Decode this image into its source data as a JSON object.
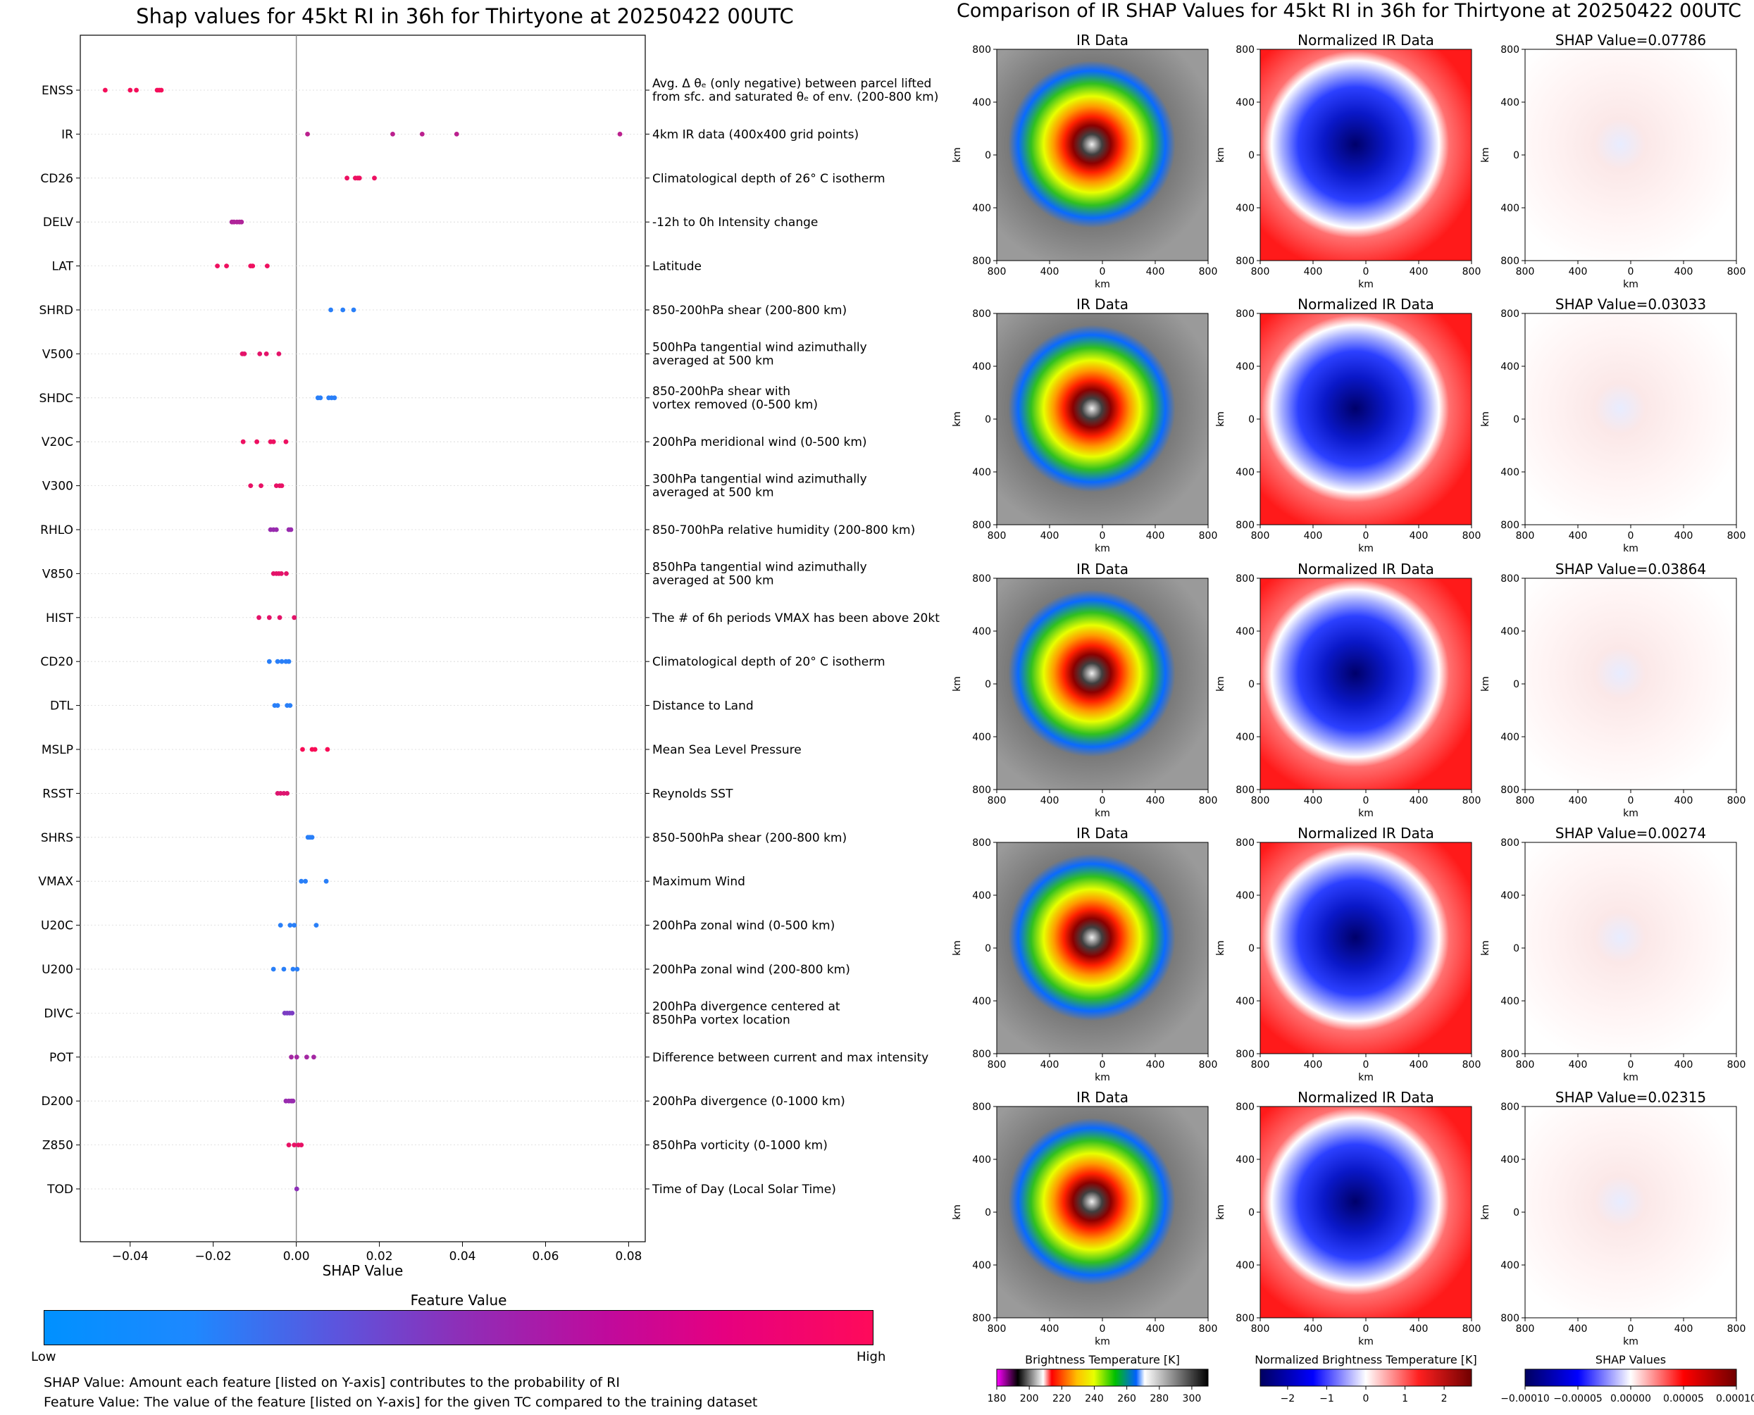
{
  "left": {
    "title": "Shap values for 45kt RI in 36h for Thirtyone at 20250422 00UTC",
    "xlabel": "SHAP Value",
    "colorbar": {
      "title": "Feature Value",
      "low": "Low",
      "high": "High"
    },
    "notes": [
      "SHAP Value: Amount each feature [listed on Y-axis] contributes to the probability of RI",
      "Feature Value: The value of the feature [listed on Y-axis] for the given TC compared to the training dataset"
    ]
  },
  "right": {
    "title": "Comparison of IR SHAP Values for 45kt RI in 36h for Thirtyone at 20250422 00UTC",
    "panel_titles": {
      "ir": "IR Data",
      "norm": "Normalized IR Data"
    },
    "shap_titles": [
      "SHAP Value=0.07786",
      "SHAP Value=0.03033",
      "SHAP Value=0.03864",
      "SHAP Value=0.00274",
      "SHAP Value=0.02315"
    ],
    "axis_label": "km",
    "tick_labels": [
      "800",
      "400",
      "0",
      "400",
      "800"
    ],
    "colorbars": [
      {
        "label": "Brightness Temperature [K]",
        "ticks": [
          "180",
          "200",
          "220",
          "240",
          "260",
          "280",
          "300"
        ]
      },
      {
        "label": "Normalized Brightness Temperature [K]",
        "ticks": [
          "−2",
          "−1",
          "0",
          "1",
          "2"
        ]
      },
      {
        "label": "SHAP Values",
        "ticks": [
          "−0.00010",
          "−0.00005",
          "0.00000",
          "0.00005",
          "0.00010"
        ]
      }
    ]
  },
  "chart_data": [
    {
      "type": "scatter",
      "title": "Shap values for 45kt RI in 36h for Thirtyone at 20250422 00UTC",
      "xlabel": "SHAP Value",
      "xlim": [
        -0.052,
        0.084
      ],
      "xticks": [
        "−0.04",
        "−0.02",
        "0.00",
        "0.02",
        "0.04",
        "0.06",
        "0.08"
      ],
      "xtick_values": [
        -0.04,
        -0.02,
        0.0,
        0.02,
        0.04,
        0.06,
        0.08
      ],
      "colormap": {
        "low": "#1e88ff",
        "high": "#ff0a50"
      },
      "features": [
        {
          "name": "ENSS",
          "desc": [
            "Avg. Δ θₑ (only negative) between parcel lifted",
            "from sfc. and saturated θₑ of env. (200-800 km)"
          ],
          "values": [
            -0.046,
            -0.04,
            -0.0385,
            -0.0335,
            -0.033,
            -0.0325
          ],
          "fv": 0.95
        },
        {
          "name": "IR",
          "desc": [
            "4km IR data (400x400 grid points)"
          ],
          "values": [
            0.0027,
            0.0232,
            0.0303,
            0.0386,
            0.0779
          ],
          "fv": 0.7
        },
        {
          "name": "CD26",
          "desc": [
            "Climatological depth of 26° C isotherm"
          ],
          "values": [
            0.0122,
            0.0142,
            0.0148,
            0.0152,
            0.0188
          ],
          "fv": 0.92
        },
        {
          "name": "DELV",
          "desc": [
            "-12h to 0h Intensity change"
          ],
          "values": [
            -0.0155,
            -0.015,
            -0.0143,
            -0.0137,
            -0.0132
          ],
          "fv": 0.65
        },
        {
          "name": "LAT",
          "desc": [
            "Latitude"
          ],
          "values": [
            -0.019,
            -0.0168,
            -0.011,
            -0.0105,
            -0.007
          ],
          "fv": 0.93
        },
        {
          "name": "SHRD",
          "desc": [
            "850-200hPa shear (200-800 km)"
          ],
          "values": [
            0.0083,
            0.0112,
            0.0138
          ],
          "fv": 0.05
        },
        {
          "name": "V500",
          "desc": [
            "500hPa tangential wind azimuthally",
            "averaged at 500 km"
          ],
          "values": [
            -0.013,
            -0.0125,
            -0.0088,
            -0.0072,
            -0.0042
          ],
          "fv": 0.88
        },
        {
          "name": "SHDC",
          "desc": [
            "850-200hPa shear with",
            "vortex removed (0-500 km)"
          ],
          "values": [
            0.0052,
            0.0058,
            0.0078,
            0.0085,
            0.0092
          ],
          "fv": 0.05
        },
        {
          "name": "V20C",
          "desc": [
            "200hPa meridional wind (0-500 km)"
          ],
          "values": [
            -0.0128,
            -0.0095,
            -0.0062,
            -0.0055,
            -0.0025
          ],
          "fv": 0.92
        },
        {
          "name": "V300",
          "desc": [
            "300hPa tangential wind azimuthally",
            "averaged at 500 km"
          ],
          "values": [
            -0.011,
            -0.0085,
            -0.0048,
            -0.004,
            -0.0035
          ],
          "fv": 0.9
        },
        {
          "name": "RHLO",
          "desc": [
            "850-700hPa relative humidity (200-800 km)"
          ],
          "values": [
            -0.0062,
            -0.0055,
            -0.0048,
            -0.0018,
            -0.0013
          ],
          "fv": 0.55
        },
        {
          "name": "V850",
          "desc": [
            "850hPa tangential wind azimuthally",
            "averaged at 500 km"
          ],
          "values": [
            -0.0055,
            -0.0048,
            -0.0042,
            -0.0036,
            -0.0024
          ],
          "fv": 0.88
        },
        {
          "name": "HIST",
          "desc": [
            "The # of 6h periods VMAX has been above 20kt"
          ],
          "values": [
            -0.009,
            -0.0065,
            -0.004,
            -0.0005
          ],
          "fv": 0.88
        },
        {
          "name": "CD20",
          "desc": [
            "Climatological depth of 20° C isotherm"
          ],
          "values": [
            -0.0065,
            -0.0045,
            -0.0035,
            -0.0025,
            -0.0018
          ],
          "fv": 0.05
        },
        {
          "name": "DTL",
          "desc": [
            "Distance to Land"
          ],
          "values": [
            -0.0052,
            -0.0045,
            -0.0022,
            -0.0015
          ],
          "fv": 0.05
        },
        {
          "name": "MSLP",
          "desc": [
            "Mean Sea Level Pressure"
          ],
          "values": [
            0.0015,
            0.0038,
            0.0045,
            0.0075
          ],
          "fv": 0.97
        },
        {
          "name": "RSST",
          "desc": [
            "Reynolds SST"
          ],
          "values": [
            -0.0045,
            -0.0038,
            -0.003,
            -0.0022
          ],
          "fv": 0.85
        },
        {
          "name": "SHRS",
          "desc": [
            "850-500hPa shear (200-800 km)"
          ],
          "values": [
            0.0028,
            0.0033,
            0.0038
          ],
          "fv": 0.05
        },
        {
          "name": "VMAX",
          "desc": [
            "Maximum Wind"
          ],
          "values": [
            0.0012,
            0.0022,
            0.0072
          ],
          "fv": 0.05
        },
        {
          "name": "U20C",
          "desc": [
            "200hPa zonal wind (0-500 km)"
          ],
          "values": [
            -0.0038,
            -0.0015,
            -0.0005,
            0.0048
          ],
          "fv": 0.05
        },
        {
          "name": "U200",
          "desc": [
            "200hPa zonal wind (200-800 km)"
          ],
          "values": [
            -0.0055,
            -0.003,
            -0.0008,
            0.0002
          ],
          "fv": 0.05
        },
        {
          "name": "DIVC",
          "desc": [
            "200hPa divergence centered at",
            "850hPa vortex location"
          ],
          "values": [
            -0.0028,
            -0.0022,
            -0.0016,
            -0.001
          ],
          "fv": 0.42
        },
        {
          "name": "POT",
          "desc": [
            "Difference between current and max intensity"
          ],
          "values": [
            -0.0012,
            0.0001,
            0.0025,
            0.0042
          ],
          "fv": 0.6
        },
        {
          "name": "D200",
          "desc": [
            "200hPa divergence (0-1000 km)"
          ],
          "values": [
            -0.0025,
            -0.0018,
            -0.0012,
            -0.0008
          ],
          "fv": 0.55
        },
        {
          "name": "Z850",
          "desc": [
            "850hPa vorticity (0-1000 km)"
          ],
          "values": [
            -0.0018,
            -0.0005,
            0.0005,
            0.0012
          ],
          "fv": 0.9
        },
        {
          "name": "TOD",
          "desc": [
            "Time of Day (Local Solar Time)"
          ],
          "values": [
            0.0001
          ],
          "fv": 0.5
        }
      ]
    },
    {
      "type": "heatmap",
      "title": "Comparison of IR SHAP Values for 45kt RI in 36h for Thirtyone at 20250422 00UTC",
      "rows": 5,
      "columns": [
        "IR Data",
        "Normalized IR Data",
        "SHAP"
      ],
      "shap_values": [
        0.07786,
        0.03033,
        0.03864,
        0.00274,
        0.02315
      ],
      "xlim": [
        -800,
        800
      ],
      "ylim": [
        -800,
        800
      ],
      "xlabel": "km",
      "ylabel": "km",
      "colorbar_ranges": [
        [
          180,
          310
        ],
        [
          -2.7,
          2.7
        ],
        [
          -0.0001,
          0.0001
        ]
      ]
    }
  ]
}
